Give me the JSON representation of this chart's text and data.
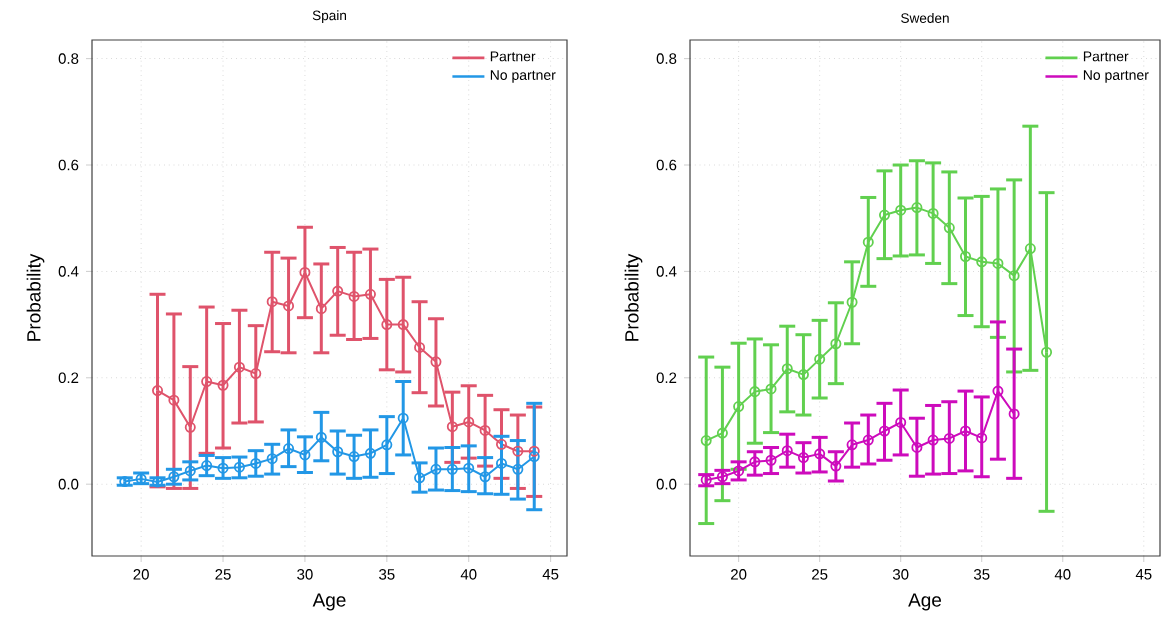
{
  "chart_data": [
    {
      "type": "line",
      "title": "Spain",
      "xlabel": "Age",
      "ylabel": "Probability",
      "xlim": [
        17,
        46
      ],
      "ylim": [
        -0.135,
        0.835
      ],
      "xticks": [
        20,
        25,
        30,
        35,
        40,
        45
      ],
      "yticks": [
        {
          "value": 0,
          "label": "0.0"
        },
        {
          "value": 0.2,
          "label": "0.2"
        },
        {
          "value": 0.4,
          "label": "0.4"
        },
        {
          "value": 0.6,
          "label": "0.6"
        },
        {
          "value": 0.8,
          "label": "0.8"
        }
      ],
      "grid": true,
      "legend": "top right",
      "marker": "circle",
      "series": [
        {
          "name": "Partner",
          "color": "#df536b",
          "x": [
            21,
            22,
            23,
            24,
            25,
            26,
            27,
            28,
            29,
            30,
            31,
            32,
            33,
            34,
            35,
            36,
            37,
            38,
            39,
            40,
            41,
            42,
            43,
            44
          ],
          "values": [
            0.176,
            0.158,
            0.107,
            0.193,
            0.186,
            0.22,
            0.208,
            0.343,
            0.335,
            0.398,
            0.33,
            0.363,
            0.353,
            0.357,
            0.3,
            0.3,
            0.257,
            0.23,
            0.108,
            0.117,
            0.101,
            0.075,
            0.062,
            0.062
          ],
          "errors": [
            [
              -0.005,
              0.357
            ],
            [
              -0.008,
              0.32
            ],
            [
              -0.008,
              0.221
            ],
            [
              0.058,
              0.333
            ],
            [
              0.068,
              0.302
            ],
            [
              0.115,
              0.327
            ],
            [
              0.117,
              0.298
            ],
            [
              0.249,
              0.436
            ],
            [
              0.247,
              0.425
            ],
            [
              0.313,
              0.483
            ],
            [
              0.247,
              0.414
            ],
            [
              0.28,
              0.445
            ],
            [
              0.272,
              0.436
            ],
            [
              0.274,
              0.442
            ],
            [
              0.215,
              0.385
            ],
            [
              0.211,
              0.389
            ],
            [
              0.172,
              0.343
            ],
            [
              0.147,
              0.311
            ],
            [
              0.041,
              0.173
            ],
            [
              0.049,
              0.185
            ],
            [
              0.034,
              0.167
            ],
            [
              0.011,
              0.14
            ],
            [
              -0.008,
              0.13
            ],
            [
              -0.023,
              0.145
            ]
          ]
        },
        {
          "name": "No partner",
          "color": "#2297e6",
          "x": [
            19,
            20,
            21,
            22,
            23,
            24,
            25,
            26,
            27,
            28,
            29,
            30,
            31,
            32,
            33,
            34,
            35,
            36,
            37,
            38,
            39,
            40,
            41,
            42,
            43,
            44
          ],
          "values": [
            0.005,
            0.01,
            0.004,
            0.014,
            0.025,
            0.035,
            0.03,
            0.032,
            0.039,
            0.048,
            0.067,
            0.055,
            0.088,
            0.061,
            0.052,
            0.058,
            0.074,
            0.124,
            0.012,
            0.028,
            0.028,
            0.03,
            0.014,
            0.039,
            0.028,
            0.052
          ],
          "errors": [
            [
              -0.002,
              0.012
            ],
            [
              0.001,
              0.021
            ],
            [
              -0.002,
              0.012
            ],
            [
              0.0,
              0.028
            ],
            [
              0.008,
              0.042
            ],
            [
              0.016,
              0.054
            ],
            [
              0.011,
              0.05
            ],
            [
              0.012,
              0.051
            ],
            [
              0.015,
              0.063
            ],
            [
              0.019,
              0.075
            ],
            [
              0.033,
              0.102
            ],
            [
              0.022,
              0.089
            ],
            [
              0.044,
              0.135
            ],
            [
              0.019,
              0.1
            ],
            [
              0.011,
              0.092
            ],
            [
              0.013,
              0.102
            ],
            [
              0.02,
              0.127
            ],
            [
              0.055,
              0.193
            ],
            [
              -0.015,
              0.04
            ],
            [
              -0.011,
              0.068
            ],
            [
              -0.012,
              0.069
            ],
            [
              -0.014,
              0.072
            ],
            [
              -0.018,
              0.05
            ],
            [
              -0.019,
              0.09
            ],
            [
              -0.028,
              0.082
            ],
            [
              -0.048,
              0.152
            ]
          ]
        }
      ]
    },
    {
      "type": "line",
      "title": "Sweden",
      "xlabel": "Age",
      "ylabel": "Probability",
      "xlim": [
        17,
        46
      ],
      "ylim": [
        -0.135,
        0.835
      ],
      "xticks": [
        20,
        25,
        30,
        35,
        40,
        45
      ],
      "yticks": [
        {
          "value": 0,
          "label": "0.0"
        },
        {
          "value": 0.2,
          "label": "0.2"
        },
        {
          "value": 0.4,
          "label": "0.4"
        },
        {
          "value": 0.6,
          "label": "0.6"
        },
        {
          "value": 0.8,
          "label": "0.8"
        }
      ],
      "grid": true,
      "legend": "top right",
      "marker": "circle",
      "series": [
        {
          "name": "Partner",
          "color": "#61d04f",
          "x": [
            18,
            19,
            20,
            21,
            22,
            23,
            24,
            25,
            26,
            27,
            28,
            29,
            30,
            31,
            32,
            33,
            34,
            35,
            36,
            37,
            38,
            39
          ],
          "values": [
            0.082,
            0.096,
            0.146,
            0.174,
            0.179,
            0.217,
            0.206,
            0.235,
            0.264,
            0.342,
            0.455,
            0.506,
            0.515,
            0.52,
            0.509,
            0.482,
            0.428,
            0.418,
            0.415,
            0.392,
            0.443,
            0.248
          ],
          "errors": [
            [
              -0.074,
              0.239
            ],
            [
              -0.031,
              0.22
            ],
            [
              0.028,
              0.265
            ],
            [
              0.077,
              0.273
            ],
            [
              0.097,
              0.262
            ],
            [
              0.136,
              0.297
            ],
            [
              0.13,
              0.281
            ],
            [
              0.162,
              0.308
            ],
            [
              0.189,
              0.341
            ],
            [
              0.264,
              0.418
            ],
            [
              0.372,
              0.539
            ],
            [
              0.424,
              0.589
            ],
            [
              0.429,
              0.6
            ],
            [
              0.431,
              0.608
            ],
            [
              0.415,
              0.604
            ],
            [
              0.377,
              0.587
            ],
            [
              0.317,
              0.538
            ],
            [
              0.296,
              0.541
            ],
            [
              0.276,
              0.555
            ],
            [
              0.211,
              0.572
            ],
            [
              0.214,
              0.673
            ],
            [
              -0.051,
              0.548
            ]
          ]
        },
        {
          "name": "No partner",
          "color": "#cd0bbc",
          "x": [
            18,
            19,
            20,
            21,
            22,
            23,
            24,
            25,
            26,
            27,
            28,
            29,
            30,
            31,
            32,
            33,
            34,
            35,
            36,
            37
          ],
          "values": [
            0.008,
            0.014,
            0.025,
            0.042,
            0.045,
            0.063,
            0.05,
            0.057,
            0.034,
            0.074,
            0.083,
            0.1,
            0.116,
            0.069,
            0.083,
            0.086,
            0.1,
            0.087,
            0.175,
            0.132
          ],
          "errors": [
            [
              -0.003,
              0.018
            ],
            [
              0.001,
              0.026
            ],
            [
              0.008,
              0.042
            ],
            [
              0.017,
              0.061
            ],
            [
              0.02,
              0.069
            ],
            [
              0.032,
              0.094
            ],
            [
              0.021,
              0.078
            ],
            [
              0.023,
              0.088
            ],
            [
              0.006,
              0.061
            ],
            [
              0.032,
              0.115
            ],
            [
              0.038,
              0.13
            ],
            [
              0.045,
              0.152
            ],
            [
              0.055,
              0.177
            ],
            [
              0.015,
              0.124
            ],
            [
              0.019,
              0.148
            ],
            [
              0.02,
              0.155
            ],
            [
              0.025,
              0.175
            ],
            [
              0.014,
              0.164
            ],
            [
              0.047,
              0.305
            ],
            [
              0.011,
              0.254
            ]
          ]
        }
      ]
    }
  ]
}
